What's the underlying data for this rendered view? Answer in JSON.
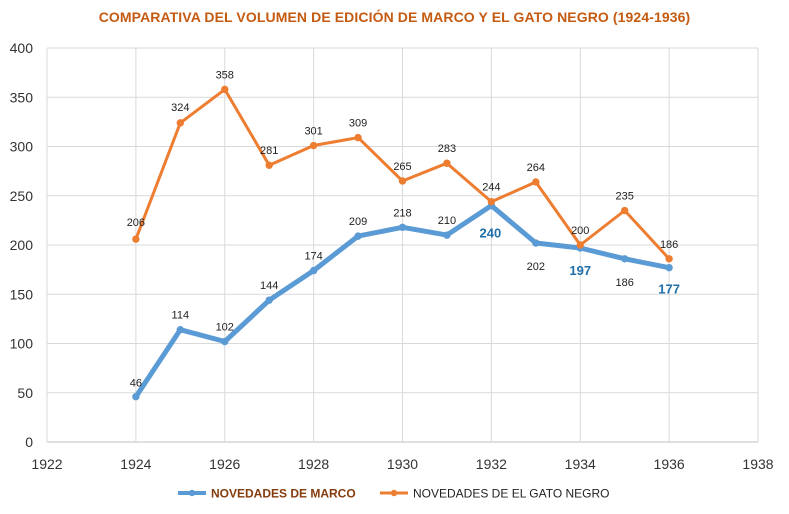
{
  "chart_data": {
    "type": "line",
    "title": "COMPARATIVA DEL VOLUMEN DE EDICIÓN DE MARCO Y EL GATO NEGRO (1924-1936)",
    "xlabel": "",
    "ylabel": "",
    "xlim": [
      1922,
      1938
    ],
    "ylim": [
      0,
      400
    ],
    "x_ticks": [
      "1922",
      "1924",
      "1926",
      "1928",
      "1930",
      "1932",
      "1934",
      "1936",
      "1938"
    ],
    "y_ticks": [
      "0",
      "50",
      "100",
      "150",
      "200",
      "250",
      "300",
      "350",
      "400"
    ],
    "grid": "horizontal and vertical",
    "legend_position": "bottom",
    "x": [
      1924,
      1925,
      1926,
      1927,
      1928,
      1929,
      1930,
      1931,
      1932,
      1933,
      1934,
      1935,
      1936
    ],
    "series": [
      {
        "name": "NOVEDADES DE MARCO",
        "color": "#5B9BD5",
        "values": [
          46,
          114,
          102,
          144,
          174,
          209,
          218,
          210,
          240,
          202,
          197,
          186,
          177
        ],
        "labels": [
          "46",
          "114",
          "102",
          "144",
          "174",
          "209",
          "218",
          "210",
          "240",
          "202",
          "197",
          "186",
          "177"
        ]
      },
      {
        "name": "NOVEDADES DE EL GATO NEGRO",
        "color": "#ED7D31",
        "values": [
          206,
          324,
          358,
          281,
          301,
          309,
          265,
          283,
          244,
          264,
          200,
          235,
          186
        ],
        "labels": [
          "206",
          "324",
          "358",
          "281",
          "301",
          "309",
          "265",
          "283",
          "244",
          "264",
          "200",
          "235",
          "186"
        ]
      }
    ]
  }
}
